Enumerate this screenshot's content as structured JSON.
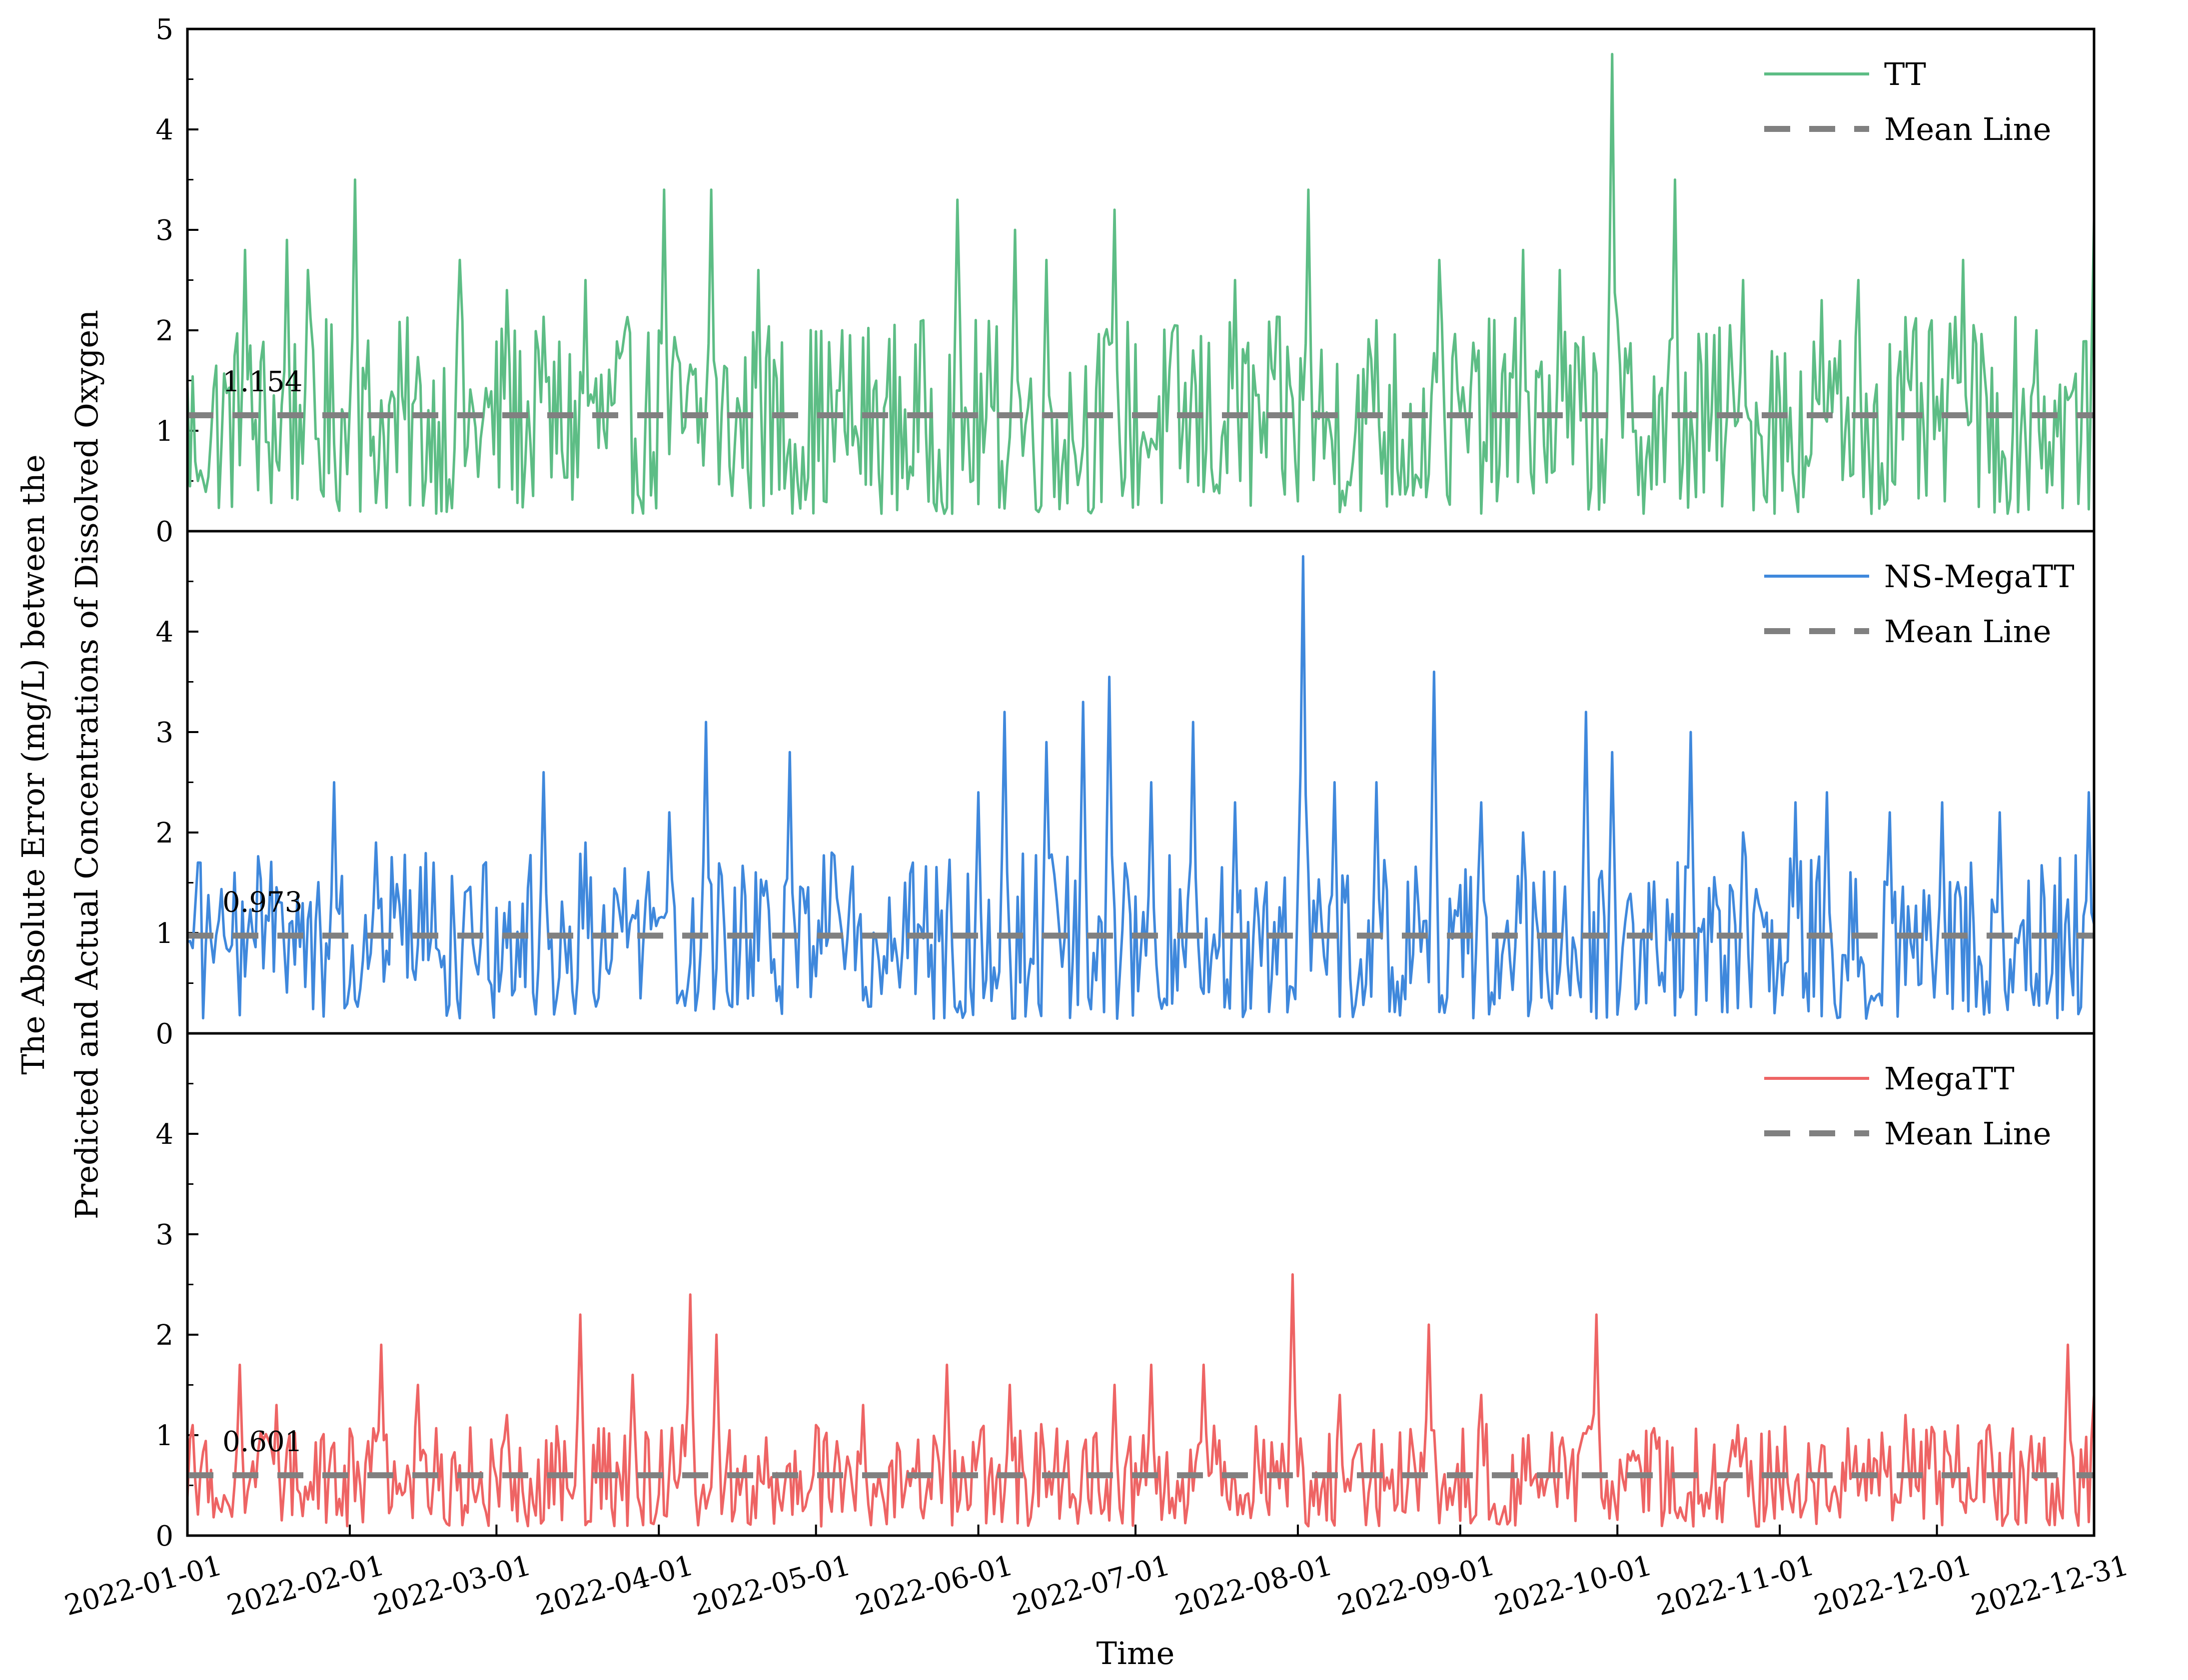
{
  "chart_data": {
    "type": "line",
    "xlabel": "Time",
    "ylabel": [
      "The Absolute Error (mg/L) between the",
      "Predicted and Actual Concentrations of Dissolved Oxygen"
    ],
    "x_range": [
      "2022-01-01",
      "2022-12-31"
    ],
    "x_ticks": [
      "2022-01-01",
      "2022-02-01",
      "2022-03-01",
      "2022-04-01",
      "2022-05-01",
      "2022-06-01",
      "2022-07-01",
      "2022-08-01",
      "2022-09-01",
      "2022-10-01",
      "2022-11-01",
      "2022-12-01",
      "2022-12-31"
    ],
    "ylim": [
      0,
      5
    ],
    "panels": [
      {
        "series_name": "TT",
        "color": "#5dbd85",
        "mean": 1.154,
        "mean_label": "1.154",
        "y_ticks": [
          "0",
          "1",
          "2",
          "3",
          "4",
          "5"
        ],
        "peaks": [
          [
            "2022-01-03",
            0.5
          ],
          [
            "2022-01-12",
            2.8
          ],
          [
            "2022-01-20",
            2.9
          ],
          [
            "2022-01-24",
            2.6
          ],
          [
            "2022-02-02",
            3.5
          ],
          [
            "2022-02-22",
            2.7
          ],
          [
            "2022-03-03",
            2.4
          ],
          [
            "2022-03-09",
            1.8
          ],
          [
            "2022-03-18",
            2.5
          ],
          [
            "2022-04-02",
            3.4
          ],
          [
            "2022-04-11",
            3.4
          ],
          [
            "2022-04-20",
            2.6
          ],
          [
            "2022-05-06",
            2.0
          ],
          [
            "2022-05-28",
            3.3
          ],
          [
            "2022-06-08",
            3.0
          ],
          [
            "2022-06-14",
            2.7
          ],
          [
            "2022-06-27",
            3.2
          ],
          [
            "2022-07-12",
            1.8
          ],
          [
            "2022-07-20",
            2.5
          ],
          [
            "2022-08-03",
            3.4
          ],
          [
            "2022-08-16",
            2.1
          ],
          [
            "2022-08-28",
            2.7
          ],
          [
            "2022-09-13",
            2.8
          ],
          [
            "2022-09-20",
            2.6
          ],
          [
            "2022-09-30",
            4.75
          ],
          [
            "2022-10-12",
            3.5
          ],
          [
            "2022-10-25",
            2.5
          ],
          [
            "2022-11-09",
            2.3
          ],
          [
            "2022-11-16",
            2.5
          ],
          [
            "2022-12-06",
            2.7
          ],
          [
            "2022-12-20",
            2.0
          ],
          [
            "2022-12-31",
            3.1
          ]
        ]
      },
      {
        "series_name": "NS-MegaTT",
        "color": "#3f88dc",
        "mean": 0.973,
        "mean_label": "0.973",
        "y_ticks": [
          "0",
          "1",
          "2",
          "3",
          "4"
        ],
        "peaks": [
          [
            "2022-01-03",
            1.7
          ],
          [
            "2022-01-10",
            1.6
          ],
          [
            "2022-01-19",
            1.3
          ],
          [
            "2022-01-29",
            2.5
          ],
          [
            "2022-02-06",
            1.9
          ],
          [
            "2022-02-17",
            1.7
          ],
          [
            "2022-03-10",
            2.6
          ],
          [
            "2022-03-18",
            1.9
          ],
          [
            "2022-04-03",
            2.2
          ],
          [
            "2022-04-10",
            3.1
          ],
          [
            "2022-04-26",
            2.8
          ],
          [
            "2022-05-04",
            1.8
          ],
          [
            "2022-05-18",
            1.5
          ],
          [
            "2022-06-01",
            2.4
          ],
          [
            "2022-06-06",
            3.2
          ],
          [
            "2022-06-14",
            2.9
          ],
          [
            "2022-06-21",
            3.3
          ],
          [
            "2022-06-26",
            3.55
          ],
          [
            "2022-07-04",
            2.5
          ],
          [
            "2022-07-12",
            3.1
          ],
          [
            "2022-07-20",
            2.3
          ],
          [
            "2022-08-02",
            4.75
          ],
          [
            "2022-08-08",
            2.5
          ],
          [
            "2022-08-16",
            2.5
          ],
          [
            "2022-08-27",
            3.6
          ],
          [
            "2022-09-05",
            2.3
          ],
          [
            "2022-09-13",
            2.0
          ],
          [
            "2022-09-25",
            3.2
          ],
          [
            "2022-09-30",
            2.8
          ],
          [
            "2022-10-15",
            3.0
          ],
          [
            "2022-10-25",
            2.0
          ],
          [
            "2022-11-04",
            2.3
          ],
          [
            "2022-11-10",
            2.4
          ],
          [
            "2022-11-22",
            2.2
          ],
          [
            "2022-12-02",
            2.3
          ],
          [
            "2022-12-13",
            2.2
          ],
          [
            "2022-12-30",
            2.4
          ]
        ]
      },
      {
        "series_name": "MegaTT",
        "color": "#ee6464",
        "mean": 0.601,
        "mean_label": "0.601",
        "y_ticks": [
          "0",
          "1",
          "2",
          "3",
          "4"
        ],
        "peaks": [
          [
            "2022-01-02",
            1.1
          ],
          [
            "2022-01-11",
            1.7
          ],
          [
            "2022-01-18",
            1.3
          ],
          [
            "2022-02-07",
            1.9
          ],
          [
            "2022-02-14",
            1.5
          ],
          [
            "2022-03-03",
            1.2
          ],
          [
            "2022-03-17",
            2.2
          ],
          [
            "2022-03-27",
            1.6
          ],
          [
            "2022-04-07",
            2.4
          ],
          [
            "2022-04-12",
            2.0
          ],
          [
            "2022-05-01",
            1.1
          ],
          [
            "2022-05-10",
            1.3
          ],
          [
            "2022-05-26",
            1.7
          ],
          [
            "2022-06-07",
            1.5
          ],
          [
            "2022-06-27",
            1.5
          ],
          [
            "2022-07-04",
            1.7
          ],
          [
            "2022-07-14",
            1.7
          ],
          [
            "2022-07-31",
            2.6
          ],
          [
            "2022-08-09",
            1.4
          ],
          [
            "2022-08-26",
            2.1
          ],
          [
            "2022-09-05",
            1.4
          ],
          [
            "2022-09-14",
            1.0
          ],
          [
            "2022-09-27",
            2.2
          ],
          [
            "2022-10-05",
            0.8
          ],
          [
            "2022-10-24",
            1.1
          ],
          [
            "2022-11-09",
            0.9
          ],
          [
            "2022-11-25",
            1.2
          ],
          [
            "2022-12-11",
            1.1
          ],
          [
            "2022-12-26",
            1.9
          ],
          [
            "2022-12-31",
            1.4
          ]
        ]
      }
    ],
    "legend_mean_label": "Mean Line",
    "mean_line_color": "#808080",
    "legend_position": "top-right",
    "grid": false
  }
}
